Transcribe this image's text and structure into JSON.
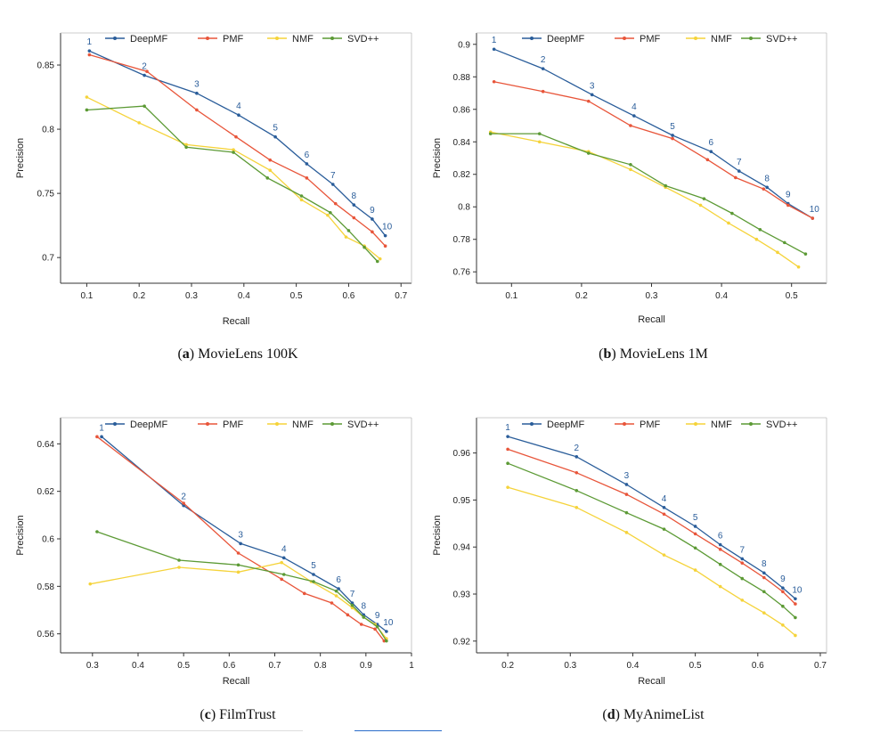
{
  "colors": {
    "DeepMF": "#2a5d9a",
    "PMF": "#e8553a",
    "NMF": "#f5d33a",
    "SVD++": "#5c9a35",
    "axis": "#333333",
    "rankLabel": "#2a5d9a"
  },
  "rank_labels": [
    "1",
    "2",
    "3",
    "4",
    "5",
    "6",
    "7",
    "8",
    "9",
    "10"
  ],
  "chart_data": [
    {
      "type": "line",
      "panel_letter": "a",
      "caption": "MovieLens 100K",
      "xlabel": "Recall",
      "ylabel": "Precision",
      "xlim": [
        0.05,
        0.72
      ],
      "ylim": [
        0.68,
        0.875
      ],
      "xticks": [
        0.1,
        0.2,
        0.3,
        0.4,
        0.5,
        0.6,
        0.7
      ],
      "xticklabels": [
        "0.1",
        "0.2",
        "0.3",
        "0.4",
        "0.5",
        "0.6",
        "0.7"
      ],
      "yticks": [
        0.7,
        0.75,
        0.8,
        0.85
      ],
      "yticklabels": [
        "0.7",
        "0.75",
        "0.8",
        "0.85"
      ],
      "legend": [
        "DeepMF",
        "PMF",
        "NMF",
        "SVD++"
      ],
      "series": [
        {
          "name": "DeepMF",
          "x": [
            0.105,
            0.21,
            0.31,
            0.39,
            0.46,
            0.52,
            0.57,
            0.61,
            0.645,
            0.67
          ],
          "y": [
            0.861,
            0.842,
            0.828,
            0.811,
            0.794,
            0.773,
            0.757,
            0.741,
            0.73,
            0.717
          ]
        },
        {
          "name": "PMF",
          "x": [
            0.105,
            0.215,
            0.31,
            0.385,
            0.45,
            0.52,
            0.575,
            0.61,
            0.645,
            0.67
          ],
          "y": [
            0.858,
            0.845,
            0.815,
            0.794,
            0.776,
            0.762,
            0.742,
            0.731,
            0.72,
            0.709
          ]
        },
        {
          "name": "NMF",
          "x": [
            0.1,
            0.2,
            0.29,
            0.38,
            0.45,
            0.51,
            0.56,
            0.595,
            0.63,
            0.66
          ],
          "y": [
            0.825,
            0.805,
            0.788,
            0.784,
            0.768,
            0.745,
            0.733,
            0.716,
            0.709,
            0.699
          ]
        },
        {
          "name": "SVD++",
          "x": [
            0.1,
            0.21,
            0.29,
            0.38,
            0.445,
            0.51,
            0.565,
            0.6,
            0.63,
            0.655
          ],
          "y": [
            0.815,
            0.818,
            0.786,
            0.782,
            0.762,
            0.748,
            0.735,
            0.721,
            0.708,
            0.697
          ]
        }
      ]
    },
    {
      "type": "line",
      "panel_letter": "b",
      "caption": "MovieLens 1M",
      "xlabel": "Recall",
      "ylabel": "Precision",
      "xlim": [
        0.05,
        0.55
      ],
      "ylim": [
        0.753,
        0.907
      ],
      "xticks": [
        0.1,
        0.2,
        0.3,
        0.4,
        0.5
      ],
      "xticklabels": [
        "0.1",
        "0.2",
        "0.3",
        "0.4",
        "0.5"
      ],
      "yticks": [
        0.76,
        0.78,
        0.8,
        0.82,
        0.84,
        0.86,
        0.88,
        0.9
      ],
      "yticklabels": [
        "0.76",
        "0.78",
        "0.8",
        "0.82",
        "0.84",
        "0.86",
        "0.88",
        "0.9"
      ],
      "legend": [
        "DeepMF",
        "PMF",
        "NMF",
        "SVD++"
      ],
      "series": [
        {
          "name": "DeepMF",
          "x": [
            0.075,
            0.145,
            0.215,
            0.275,
            0.33,
            0.385,
            0.425,
            0.465,
            0.495,
            0.53
          ],
          "y": [
            0.897,
            0.885,
            0.869,
            0.856,
            0.844,
            0.834,
            0.822,
            0.812,
            0.802,
            0.793
          ]
        },
        {
          "name": "PMF",
          "x": [
            0.075,
            0.145,
            0.21,
            0.27,
            0.33,
            0.38,
            0.42,
            0.46,
            0.495,
            0.53
          ],
          "y": [
            0.877,
            0.871,
            0.865,
            0.85,
            0.842,
            0.829,
            0.818,
            0.811,
            0.801,
            0.793
          ]
        },
        {
          "name": "NMF",
          "x": [
            0.07,
            0.14,
            0.21,
            0.27,
            0.32,
            0.37,
            0.41,
            0.45,
            0.48,
            0.51
          ],
          "y": [
            0.846,
            0.84,
            0.834,
            0.823,
            0.812,
            0.801,
            0.79,
            0.78,
            0.772,
            0.763
          ]
        },
        {
          "name": "SVD++",
          "x": [
            0.07,
            0.14,
            0.21,
            0.27,
            0.32,
            0.375,
            0.415,
            0.455,
            0.49,
            0.52
          ],
          "y": [
            0.845,
            0.845,
            0.833,
            0.826,
            0.813,
            0.805,
            0.796,
            0.786,
            0.778,
            0.771
          ]
        }
      ]
    },
    {
      "type": "line",
      "panel_letter": "c",
      "caption": "FilmTrust",
      "xlabel": "Recall",
      "ylabel": "Precision",
      "xlim": [
        0.23,
        1.0
      ],
      "ylim": [
        0.552,
        0.651
      ],
      "xticks": [
        0.3,
        0.4,
        0.5,
        0.6,
        0.7,
        0.8,
        0.9,
        1.0
      ],
      "xticklabels": [
        "0.3",
        "0.4",
        "0.5",
        "0.6",
        "0.7",
        "0.8",
        "0.9",
        "1"
      ],
      "yticks": [
        0.56,
        0.58,
        0.6,
        0.62,
        0.64
      ],
      "yticklabels": [
        "0.56",
        "0.58",
        "0.6",
        "0.62",
        "0.64"
      ],
      "legend": [
        "DeepMF",
        "PMF",
        "NMF",
        "SVD++"
      ],
      "series": [
        {
          "name": "DeepMF",
          "x": [
            0.32,
            0.5,
            0.625,
            0.72,
            0.785,
            0.84,
            0.87,
            0.895,
            0.925,
            0.945
          ],
          "y": [
            0.643,
            0.614,
            0.598,
            0.592,
            0.585,
            0.579,
            0.573,
            0.568,
            0.564,
            0.561
          ]
        },
        {
          "name": "PMF",
          "x": [
            0.31,
            0.5,
            0.62,
            0.715,
            0.765,
            0.825,
            0.86,
            0.89,
            0.92,
            0.94
          ],
          "y": [
            0.643,
            0.615,
            0.594,
            0.583,
            0.577,
            0.573,
            0.568,
            0.564,
            0.562,
            0.557
          ]
        },
        {
          "name": "NMF",
          "x": [
            0.295,
            0.49,
            0.62,
            0.715,
            0.78,
            0.835,
            0.87,
            0.895,
            0.92,
            0.945
          ],
          "y": [
            0.581,
            0.588,
            0.586,
            0.59,
            0.582,
            0.576,
            0.571,
            0.567,
            0.564,
            0.558
          ]
        },
        {
          "name": "SVD++",
          "x": [
            0.31,
            0.49,
            0.62,
            0.72,
            0.785,
            0.835,
            0.87,
            0.895,
            0.925,
            0.945
          ],
          "y": [
            0.603,
            0.591,
            0.589,
            0.585,
            0.582,
            0.578,
            0.572,
            0.567,
            0.563,
            0.557
          ]
        }
      ]
    },
    {
      "type": "line",
      "panel_letter": "d",
      "caption": "MyAnimeList",
      "xlabel": "Recall",
      "ylabel": "Precision",
      "xlim": [
        0.15,
        0.71
      ],
      "ylim": [
        0.9175,
        0.9675
      ],
      "xticks": [
        0.2,
        0.3,
        0.4,
        0.5,
        0.6,
        0.7
      ],
      "xticklabels": [
        "0.2",
        "0.3",
        "0.4",
        "0.5",
        "0.6",
        "0.7"
      ],
      "yticks": [
        0.92,
        0.93,
        0.94,
        0.95,
        0.96
      ],
      "yticklabels": [
        "0.92",
        "0.93",
        "0.94",
        "0.95",
        "0.96"
      ],
      "legend": [
        "DeepMF",
        "PMF",
        "NMF",
        "SVD++"
      ],
      "series": [
        {
          "name": "DeepMF",
          "x": [
            0.2,
            0.31,
            0.39,
            0.45,
            0.5,
            0.54,
            0.575,
            0.61,
            0.64,
            0.66
          ],
          "y": [
            0.9635,
            0.9592,
            0.9533,
            0.9484,
            0.9444,
            0.9405,
            0.9375,
            0.9345,
            0.9313,
            0.929
          ]
        },
        {
          "name": "PMF",
          "x": [
            0.2,
            0.31,
            0.39,
            0.45,
            0.5,
            0.54,
            0.575,
            0.61,
            0.64,
            0.66
          ],
          "y": [
            0.9608,
            0.9558,
            0.9512,
            0.947,
            0.9428,
            0.9395,
            0.9366,
            0.9335,
            0.9305,
            0.9279
          ]
        },
        {
          "name": "NMF",
          "x": [
            0.2,
            0.31,
            0.39,
            0.45,
            0.5,
            0.54,
            0.575,
            0.61,
            0.64,
            0.66
          ],
          "y": [
            0.9527,
            0.9484,
            0.9431,
            0.9383,
            0.9351,
            0.9316,
            0.9287,
            0.926,
            0.9234,
            0.9212
          ]
        },
        {
          "name": "SVD++",
          "x": [
            0.2,
            0.31,
            0.39,
            0.45,
            0.5,
            0.54,
            0.575,
            0.61,
            0.64,
            0.66
          ],
          "y": [
            0.9578,
            0.952,
            0.9473,
            0.9438,
            0.9398,
            0.9363,
            0.9333,
            0.9305,
            0.9274,
            0.925
          ]
        }
      ]
    }
  ]
}
